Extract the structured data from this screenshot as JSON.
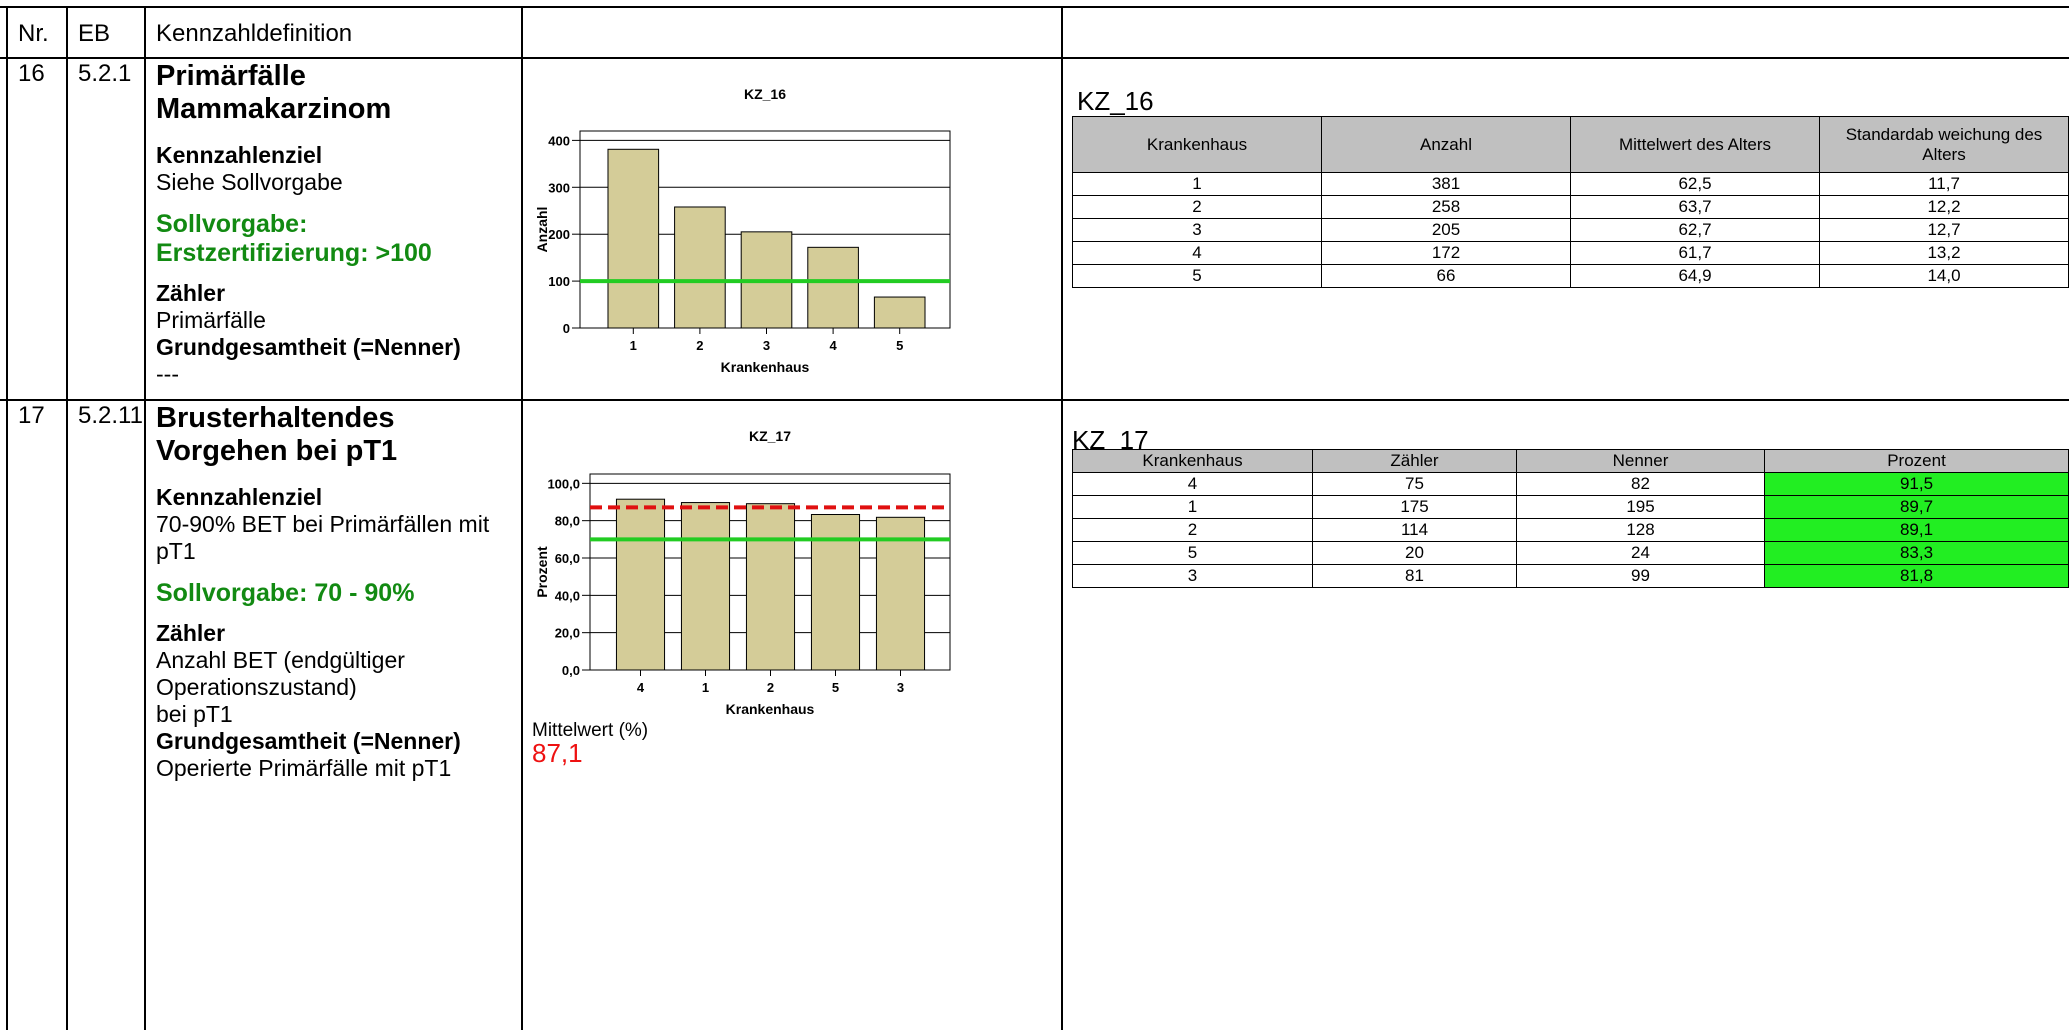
{
  "header": {
    "nr": "Nr.",
    "eb": "EB",
    "definition": "Kennzahldefinition"
  },
  "rows": [
    {
      "nr": "16",
      "eb": "5.2.1",
      "title": "Primärfälle Mammakarzinom",
      "ziel_label": "Kennzahlenziel",
      "ziel_text": "Siehe Sollvorgabe",
      "sollvorgabe": "Sollvorgabe: Erstzertifizierung: >100",
      "zaehler_label": "Zähler",
      "zaehler_text": "Primärfälle",
      "nenner_label": "Grundgesamtheit (=Nenner)",
      "nenner_text": "---",
      "table": {
        "title": "KZ_16",
        "headers": [
          "Krankenhaus",
          "Anzahl",
          "Mittelwert des Alters",
          "Standardab weichung des Alters"
        ],
        "rows": [
          [
            "1",
            "381",
            "62,5",
            "11,7"
          ],
          [
            "2",
            "258",
            "63,7",
            "12,2"
          ],
          [
            "3",
            "205",
            "62,7",
            "12,7"
          ],
          [
            "4",
            "172",
            "61,7",
            "13,2"
          ],
          [
            "5",
            "66",
            "64,9",
            "14,0"
          ]
        ]
      }
    },
    {
      "nr": "17",
      "eb": "5.2.11",
      "title": "Brusterhaltendes Vorgehen bei pT1",
      "ziel_label": "Kennzahlenziel",
      "ziel_text": "70-90% BET bei Primärfällen mit pT1",
      "sollvorgabe": "Sollvorgabe: 70 - 90%",
      "zaehler_label": "Zähler",
      "zaehler_text_1": "Anzahl BET (endgültiger Operationszustand)",
      "zaehler_text_2": "bei pT1",
      "nenner_label": "Grundgesamtheit (=Nenner)",
      "nenner_text": "Operierte Primärfälle mit pT1",
      "mittelwert_label": "Mittelwert (%)",
      "mittelwert_value": "87,1",
      "table": {
        "title": "KZ_17",
        "headers": [
          "Krankenhaus",
          "Zähler",
          "Nenner",
          "Prozent"
        ],
        "rows": [
          [
            "4",
            "75",
            "82",
            "91,5"
          ],
          [
            "1",
            "175",
            "195",
            "89,7"
          ],
          [
            "2",
            "114",
            "128",
            "89,1"
          ],
          [
            "5",
            "20",
            "24",
            "83,3"
          ],
          [
            "3",
            "81",
            "99",
            "81,8"
          ]
        ]
      }
    }
  ],
  "chart_data": [
    {
      "type": "bar",
      "title": "KZ_16",
      "xlabel": "Krankenhaus",
      "ylabel": "Anzahl",
      "categories": [
        "1",
        "2",
        "3",
        "4",
        "5"
      ],
      "values": [
        381,
        258,
        205,
        172,
        66
      ],
      "ylim": [
        0,
        420
      ],
      "yticks": [
        "0",
        "100",
        "200",
        "300",
        "400"
      ],
      "reference_lines": [
        {
          "value": 100,
          "style": "solid",
          "color": "#22cc22"
        }
      ],
      "bar_color": "#d4cc98",
      "grid": true
    },
    {
      "type": "bar",
      "title": "KZ_17",
      "xlabel": "Krankenhaus",
      "ylabel": "Prozent",
      "categories": [
        "4",
        "1",
        "2",
        "5",
        "3"
      ],
      "values": [
        91.5,
        89.7,
        89.1,
        83.3,
        81.8
      ],
      "ylim": [
        0,
        105
      ],
      "yticks": [
        "0,0",
        "20,0",
        "40,0",
        "60,0",
        "80,0",
        "100,0"
      ],
      "reference_lines": [
        {
          "value": 87.1,
          "style": "dashed",
          "color": "#e01010"
        },
        {
          "value": 70,
          "style": "solid",
          "color": "#22cc22"
        }
      ],
      "bar_color": "#d4cc98",
      "grid": true
    }
  ]
}
